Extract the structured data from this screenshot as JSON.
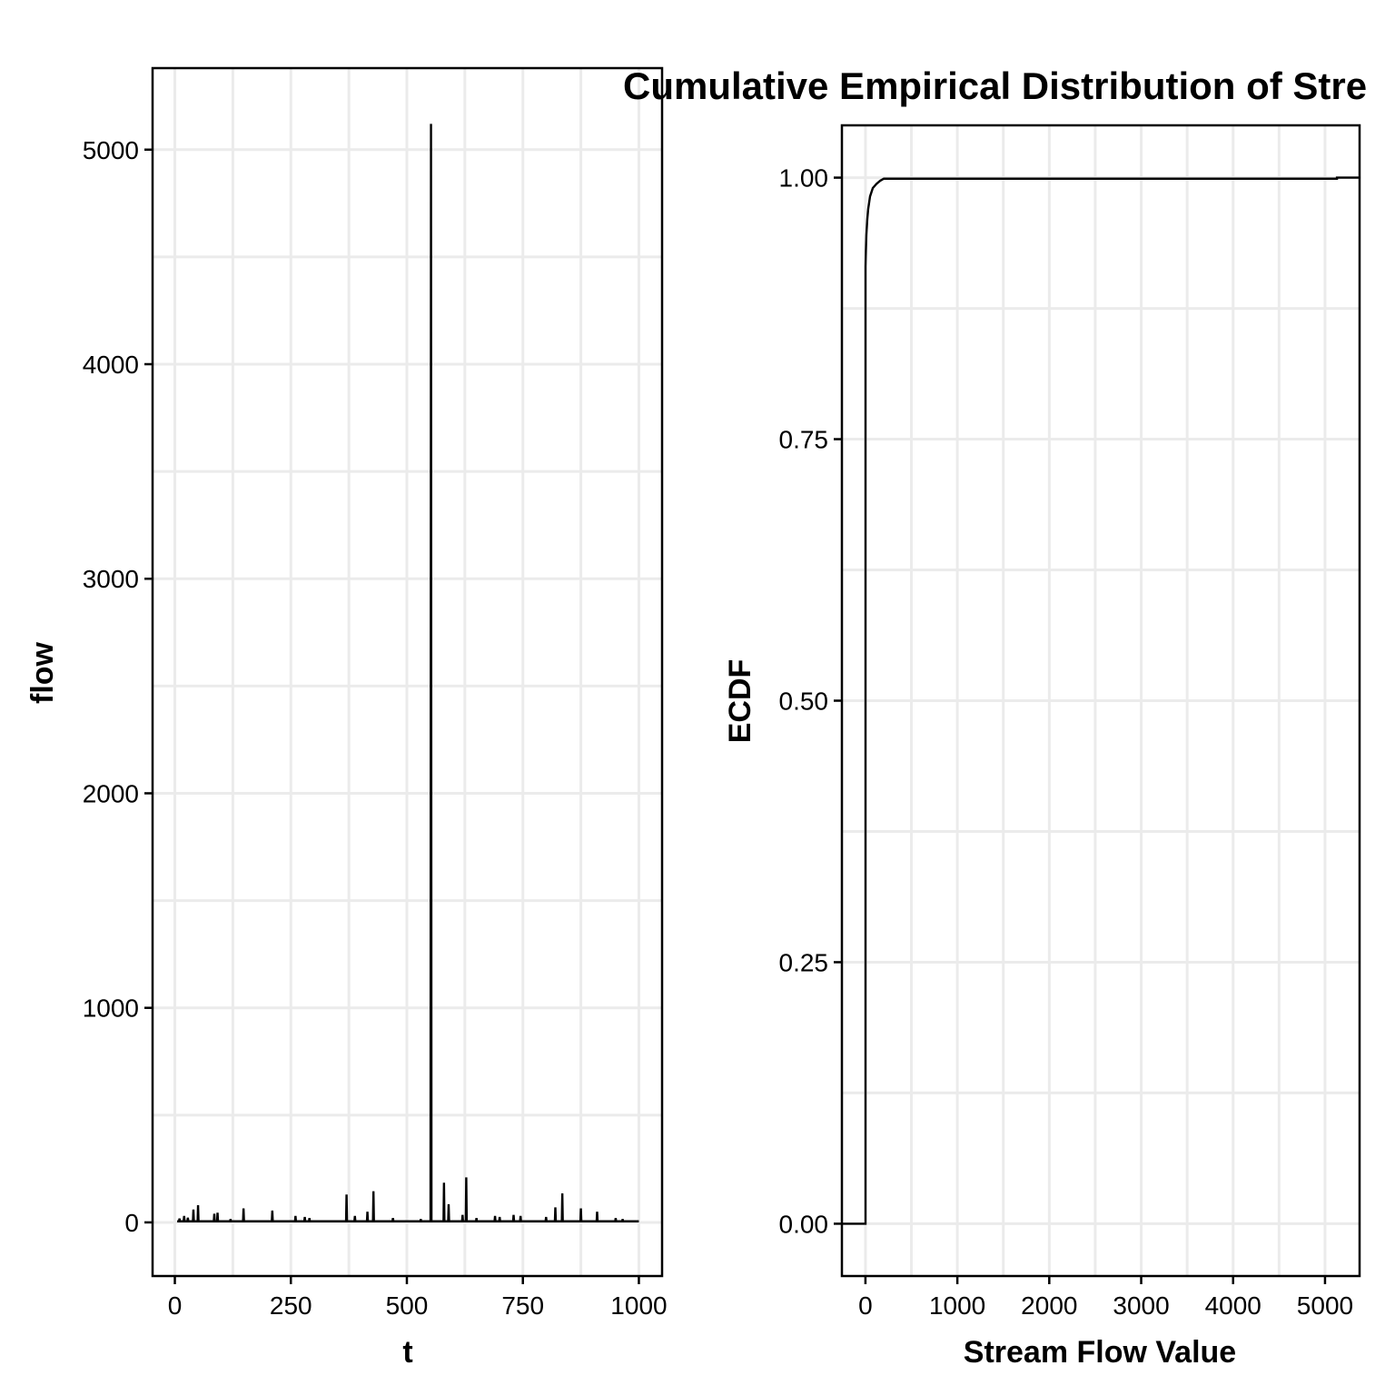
{
  "chart_data": [
    {
      "type": "line",
      "title": "",
      "xlabel": "t",
      "ylabel": "flow",
      "xlim": [
        -48,
        1050
      ],
      "ylim": [
        -250,
        5380
      ],
      "x_ticks": [
        0,
        250,
        500,
        750,
        1000
      ],
      "x_tick_labels": [
        "0",
        "250",
        "500",
        "750",
        "1000"
      ],
      "y_ticks": [
        0,
        1000,
        2000,
        3000,
        4000,
        5000
      ],
      "y_tick_labels": [
        "0",
        "1000",
        "2000",
        "3000",
        "4000",
        "5000"
      ],
      "grid": true,
      "baseline": 5,
      "series": [
        {
          "x": [
            10,
            20,
            28,
            40,
            50,
            85,
            92,
            120,
            148,
            210,
            260,
            280,
            290,
            370,
            388,
            415,
            428,
            470,
            530,
            552,
            580,
            590,
            620,
            628,
            650,
            690,
            700,
            730,
            745,
            800,
            820,
            835,
            875,
            910,
            950,
            965
          ],
          "y": [
            18,
            30,
            22,
            60,
            80,
            40,
            45,
            15,
            65,
            55,
            30,
            25,
            20,
            130,
            30,
            50,
            145,
            20,
            15,
            5120,
            185,
            85,
            35,
            210,
            20,
            30,
            25,
            35,
            30,
            25,
            70,
            135,
            65,
            50,
            20,
            15
          ]
        }
      ]
    },
    {
      "type": "line",
      "title": "Cumulative Empirical Distribution of Stre",
      "xlabel": "Stream Flow Value",
      "ylabel": "ECDF",
      "xlim": [
        -256,
        5376
      ],
      "ylim": [
        -0.05,
        1.05
      ],
      "x_ticks": [
        0,
        1000,
        2000,
        3000,
        4000,
        5000
      ],
      "x_tick_labels": [
        "0",
        "1000",
        "2000",
        "3000",
        "4000",
        "5000"
      ],
      "y_ticks": [
        0,
        0.25,
        0.5,
        0.75,
        1.0
      ],
      "y_tick_labels": [
        "0.00",
        "0.25",
        "0.50",
        "0.75",
        "1.00"
      ],
      "grid": true,
      "series": [
        {
          "x": [
            -256,
            1,
            1,
            5,
            10,
            20,
            30,
            50,
            80,
            120,
            160,
            200,
            5130,
            5130,
            5376
          ],
          "y": [
            0,
            0,
            0.915,
            0.93,
            0.945,
            0.96,
            0.97,
            0.982,
            0.99,
            0.994,
            0.997,
            0.999,
            0.999,
            1.0,
            1.0
          ]
        }
      ]
    }
  ]
}
